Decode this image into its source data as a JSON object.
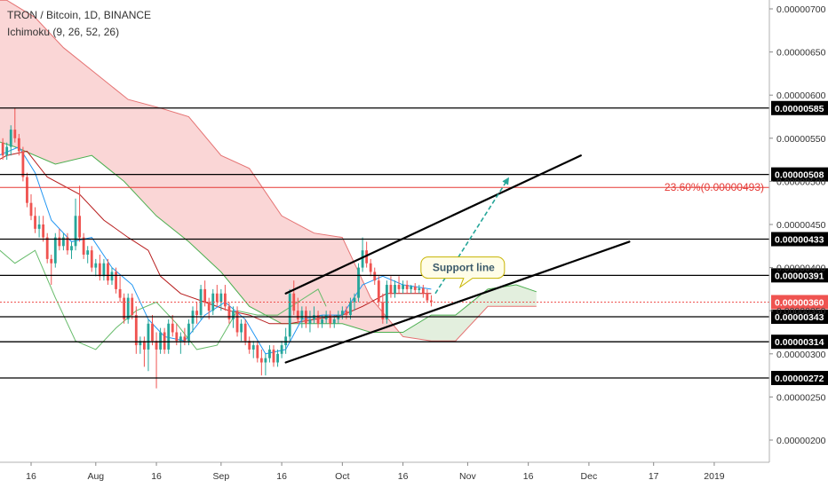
{
  "header": {
    "title": "TRON / Bitcoin, 1D, BINANCE",
    "indicator": "Ichimoku (9, 26, 52, 26)"
  },
  "colors": {
    "up": "#26a69a",
    "down": "#ef5350",
    "cloud_bear": "#f8c8c8",
    "cloud_bull": "#d9ead3",
    "span_a": "#4caf50",
    "span_b": "#e57373",
    "tenkan": "#2196f3",
    "kijun": "#b71c1c",
    "chikou": "#66bb6a",
    "fib": "#e53935",
    "arrow": "#26a69a",
    "trend": "#000000",
    "callout_bg": "#fffde7",
    "callout_border": "#c8b400",
    "current_price": "#ef5350"
  },
  "chart_data": {
    "type": "candlestick",
    "title": "TRON / Bitcoin, 1D, BINANCE",
    "y_range": [
      1.7e-06,
      7.1e-06
    ],
    "y_ticks": [
      "0.00000700",
      "0.00000650",
      "0.00000600",
      "0.00000550",
      "0.00000500",
      "0.00000450",
      "0.00000400",
      "0.00000350",
      "0.00000300",
      "0.00000250",
      "0.00000200"
    ],
    "x_ticks": [
      {
        "label": "16",
        "date": "2018-07-16"
      },
      {
        "label": "Aug",
        "date": "2018-08-01"
      },
      {
        "label": "16",
        "date": "2018-08-16"
      },
      {
        "label": "Sep",
        "date": "2018-09-01"
      },
      {
        "label": "16",
        "date": "2018-09-16"
      },
      {
        "label": "Oct",
        "date": "2018-10-01"
      },
      {
        "label": "16",
        "date": "2018-10-16"
      },
      {
        "label": "Nov",
        "date": "2018-11-01"
      },
      {
        "label": "16",
        "date": "2018-11-16"
      },
      {
        "label": "Dec",
        "date": "2018-12-01"
      },
      {
        "label": "17",
        "date": "2018-12-17"
      },
      {
        "label": "2019",
        "date": "2019-01-01"
      }
    ],
    "horizontal_levels": [
      {
        "price": 5.85e-06,
        "label": "0.00000585"
      },
      {
        "price": 5.08e-06,
        "label": "0.00000508"
      },
      {
        "price": 4.33e-06,
        "label": "0.00000433"
      },
      {
        "price": 3.91e-06,
        "label": "0.00000391"
      },
      {
        "price": 3.43e-06,
        "label": "0.00000343"
      },
      {
        "price": 3.14e-06,
        "label": "0.00000314"
      },
      {
        "price": 2.72e-06,
        "label": "0.00000272"
      }
    ],
    "current_price": {
      "price": 3.6e-06,
      "label": "0.00000360"
    },
    "fib_level": {
      "price": 4.93e-06,
      "label": "23.60%(0.00000493)"
    },
    "trendlines": [
      {
        "start": {
          "date": "2018-09-17",
          "price": 3.7e-06
        },
        "end": {
          "date": "2018-11-29",
          "price": 5.3e-06
        }
      },
      {
        "start": {
          "date": "2018-09-17",
          "price": 2.9e-06
        },
        "end": {
          "date": "2018-12-11",
          "price": 4.3e-06
        }
      }
    ],
    "arrow": {
      "start": {
        "date": "2018-10-24",
        "price": 3.7e-06
      },
      "end": {
        "date": "2018-11-11",
        "price": 5.03e-06
      }
    },
    "callout": {
      "text": "Support line",
      "date": "2018-10-31",
      "price": 4e-06
    },
    "ohlc": [
      [
        "2018-07-02",
        5.5,
        5.55,
        5.2,
        5.3
      ],
      [
        "2018-07-03",
        5.3,
        5.38,
        5.05,
        5.1
      ],
      [
        "2018-07-04",
        5.1,
        5.42,
        5.05,
        5.35
      ],
      [
        "2018-07-05",
        5.35,
        5.45,
        5.0,
        5.05
      ],
      [
        "2018-07-06",
        5.05,
        5.2,
        4.95,
        5.15
      ],
      [
        "2018-07-07",
        5.15,
        5.4,
        5.1,
        5.35
      ],
      [
        "2018-07-08",
        5.35,
        5.5,
        5.3,
        5.45
      ],
      [
        "2018-07-09",
        5.45,
        5.5,
        5.25,
        5.3
      ],
      [
        "2018-07-10",
        5.3,
        5.45,
        5.25,
        5.4
      ],
      [
        "2018-07-11",
        5.4,
        5.65,
        5.3,
        5.6
      ],
      [
        "2018-07-12",
        5.6,
        5.85,
        5.45,
        5.5
      ],
      [
        "2018-07-13",
        5.5,
        5.55,
        5.3,
        5.35
      ],
      [
        "2018-07-14",
        5.35,
        5.4,
        5.0,
        5.05
      ],
      [
        "2018-07-15",
        5.05,
        5.1,
        4.7,
        4.75
      ],
      [
        "2018-07-16",
        4.75,
        4.85,
        4.55,
        4.6
      ],
      [
        "2018-07-17",
        4.6,
        4.7,
        4.4,
        4.45
      ],
      [
        "2018-07-18",
        4.45,
        4.6,
        4.35,
        4.5
      ],
      [
        "2018-07-19",
        4.5,
        4.6,
        4.3,
        4.35
      ],
      [
        "2018-07-20",
        4.35,
        4.4,
        4.05,
        4.1
      ],
      [
        "2018-07-21",
        4.1,
        4.15,
        3.8,
        4.05
      ],
      [
        "2018-07-22",
        4.05,
        4.4,
        4.0,
        4.35
      ],
      [
        "2018-07-23",
        4.35,
        4.45,
        4.2,
        4.25
      ],
      [
        "2018-07-24",
        4.25,
        4.4,
        4.2,
        4.35
      ],
      [
        "2018-07-25",
        4.35,
        4.4,
        4.15,
        4.2
      ],
      [
        "2018-07-26",
        4.2,
        4.3,
        4.1,
        4.25
      ],
      [
        "2018-07-27",
        4.25,
        4.8,
        4.2,
        4.6
      ],
      [
        "2018-07-28",
        4.6,
        4.95,
        4.3,
        4.35
      ],
      [
        "2018-07-29",
        4.35,
        4.4,
        4.1,
        4.15
      ],
      [
        "2018-07-30",
        4.15,
        4.25,
        4.05,
        4.2
      ],
      [
        "2018-07-31",
        4.2,
        4.25,
        3.95,
        4.0
      ],
      [
        "2018-08-01",
        4.0,
        4.1,
        3.9,
        4.05
      ],
      [
        "2018-08-02",
        4.05,
        4.15,
        3.85,
        3.9
      ],
      [
        "2018-08-03",
        3.9,
        4.1,
        3.85,
        4.05
      ],
      [
        "2018-08-04",
        4.05,
        4.1,
        3.8,
        3.85
      ],
      [
        "2018-08-05",
        3.85,
        4.0,
        3.8,
        3.95
      ],
      [
        "2018-08-06",
        3.95,
        4.0,
        3.7,
        3.75
      ],
      [
        "2018-08-07",
        3.75,
        3.9,
        3.6,
        3.65
      ],
      [
        "2018-08-08",
        3.65,
        3.7,
        3.35,
        3.4
      ],
      [
        "2018-08-09",
        3.4,
        3.7,
        3.35,
        3.65
      ],
      [
        "2018-08-10",
        3.65,
        3.7,
        3.4,
        3.45
      ],
      [
        "2018-08-11",
        3.45,
        3.55,
        3.0,
        3.1
      ],
      [
        "2018-08-12",
        3.1,
        3.2,
        3.0,
        3.15
      ],
      [
        "2018-08-13",
        3.15,
        3.2,
        2.85,
        3.05
      ],
      [
        "2018-08-14",
        3.05,
        3.4,
        2.8,
        3.35
      ],
      [
        "2018-08-15",
        3.35,
        3.45,
        3.1,
        3.15
      ],
      [
        "2018-08-16",
        3.15,
        3.25,
        2.6,
        3.05
      ],
      [
        "2018-08-17",
        3.05,
        3.3,
        3.0,
        3.25
      ],
      [
        "2018-08-18",
        3.25,
        3.3,
        3.0,
        3.05
      ],
      [
        "2018-08-19",
        3.05,
        3.4,
        3.0,
        3.35
      ],
      [
        "2018-08-20",
        3.35,
        3.45,
        3.2,
        3.25
      ],
      [
        "2018-08-21",
        3.25,
        3.35,
        3.1,
        3.15
      ],
      [
        "2018-08-22",
        3.15,
        3.25,
        3.0,
        3.2
      ],
      [
        "2018-08-23",
        3.2,
        3.3,
        3.1,
        3.15
      ],
      [
        "2018-08-24",
        3.15,
        3.4,
        3.1,
        3.35
      ],
      [
        "2018-08-25",
        3.35,
        3.55,
        3.25,
        3.5
      ],
      [
        "2018-08-26",
        3.5,
        3.6,
        3.35,
        3.45
      ],
      [
        "2018-08-27",
        3.45,
        3.8,
        3.4,
        3.75
      ],
      [
        "2018-08-28",
        3.75,
        3.85,
        3.55,
        3.6
      ],
      [
        "2018-08-29",
        3.6,
        3.65,
        3.4,
        3.5
      ],
      [
        "2018-08-30",
        3.5,
        3.75,
        3.45,
        3.7
      ],
      [
        "2018-08-31",
        3.7,
        3.8,
        3.55,
        3.6
      ],
      [
        "2018-09-01",
        3.6,
        3.75,
        3.5,
        3.7
      ],
      [
        "2018-09-02",
        3.7,
        3.8,
        3.5,
        3.55
      ],
      [
        "2018-09-03",
        3.55,
        3.6,
        3.35,
        3.4
      ],
      [
        "2018-09-04",
        3.4,
        3.55,
        3.3,
        3.5
      ],
      [
        "2018-09-05",
        3.5,
        3.55,
        3.2,
        3.25
      ],
      [
        "2018-09-06",
        3.25,
        3.4,
        3.15,
        3.35
      ],
      [
        "2018-09-07",
        3.35,
        3.4,
        3.1,
        3.15
      ],
      [
        "2018-09-08",
        3.15,
        3.2,
        3.0,
        3.05
      ],
      [
        "2018-09-09",
        3.05,
        3.15,
        2.95,
        3.1
      ],
      [
        "2018-09-10",
        3.1,
        3.15,
        2.9,
        2.95
      ],
      [
        "2018-09-11",
        2.95,
        3.05,
        2.75,
        2.9
      ],
      [
        "2018-09-12",
        2.9,
        3.0,
        2.75,
        2.95
      ],
      [
        "2018-09-13",
        2.95,
        3.1,
        2.9,
        3.05
      ],
      [
        "2018-09-14",
        3.05,
        3.1,
        2.85,
        2.9
      ],
      [
        "2018-09-15",
        2.9,
        3.05,
        2.85,
        3.0
      ],
      [
        "2018-09-16",
        3.0,
        3.15,
        2.95,
        3.1
      ],
      [
        "2018-09-17",
        3.1,
        3.3,
        3.0,
        3.2
      ],
      [
        "2018-09-18",
        3.2,
        3.75,
        3.15,
        3.7
      ],
      [
        "2018-09-19",
        3.7,
        3.85,
        3.45,
        3.5
      ],
      [
        "2018-09-20",
        3.5,
        3.65,
        3.35,
        3.4
      ],
      [
        "2018-09-21",
        3.4,
        3.55,
        3.3,
        3.5
      ],
      [
        "2018-09-22",
        3.5,
        3.55,
        3.3,
        3.35
      ],
      [
        "2018-09-23",
        3.35,
        3.5,
        3.25,
        3.4
      ],
      [
        "2018-09-24",
        3.4,
        3.55,
        3.35,
        3.45
      ],
      [
        "2018-09-25",
        3.45,
        3.5,
        3.3,
        3.35
      ],
      [
        "2018-09-26",
        3.35,
        3.45,
        3.3,
        3.4
      ],
      [
        "2018-09-27",
        3.4,
        3.5,
        3.35,
        3.45
      ],
      [
        "2018-09-28",
        3.45,
        3.5,
        3.3,
        3.35
      ],
      [
        "2018-09-29",
        3.35,
        3.45,
        3.3,
        3.4
      ],
      [
        "2018-09-30",
        3.4,
        3.5,
        3.35,
        3.45
      ],
      [
        "2018-10-01",
        3.45,
        3.55,
        3.4,
        3.5
      ],
      [
        "2018-10-02",
        3.5,
        3.55,
        3.4,
        3.45
      ],
      [
        "2018-10-03",
        3.45,
        3.65,
        3.4,
        3.6
      ],
      [
        "2018-10-04",
        3.6,
        3.7,
        3.5,
        3.65
      ],
      [
        "2018-10-05",
        3.65,
        4.05,
        3.6,
        4.0
      ],
      [
        "2018-10-06",
        4.0,
        4.35,
        3.95,
        4.2
      ],
      [
        "2018-10-07",
        4.2,
        4.3,
        4.0,
        4.05
      ],
      [
        "2018-10-08",
        4.05,
        4.1,
        3.9,
        3.95
      ],
      [
        "2018-10-09",
        3.95,
        4.0,
        3.8,
        3.85
      ],
      [
        "2018-10-10",
        3.85,
        3.9,
        3.55,
        3.6
      ],
      [
        "2018-10-11",
        3.6,
        3.7,
        3.35,
        3.4
      ],
      [
        "2018-10-12",
        3.4,
        3.85,
        3.35,
        3.8
      ],
      [
        "2018-10-13",
        3.8,
        3.9,
        3.65,
        3.7
      ],
      [
        "2018-10-14",
        3.7,
        3.85,
        3.65,
        3.8
      ],
      [
        "2018-10-15",
        3.8,
        3.9,
        3.7,
        3.75
      ],
      [
        "2018-10-16",
        3.75,
        3.85,
        3.7,
        3.8
      ],
      [
        "2018-10-17",
        3.8,
        3.85,
        3.7,
        3.75
      ],
      [
        "2018-10-18",
        3.75,
        3.8,
        3.7,
        3.78
      ],
      [
        "2018-10-19",
        3.78,
        3.82,
        3.7,
        3.74
      ],
      [
        "2018-10-20",
        3.74,
        3.8,
        3.7,
        3.76
      ],
      [
        "2018-10-21",
        3.76,
        3.8,
        3.65,
        3.7
      ],
      [
        "2018-10-22",
        3.7,
        3.75,
        3.6,
        3.62
      ],
      [
        "2018-10-23",
        3.62,
        3.68,
        3.55,
        3.6
      ]
    ],
    "tenkan_sen": [
      [
        "2018-07-02",
        5.35
      ],
      [
        "2018-07-08",
        5.3
      ],
      [
        "2018-07-13",
        5.4
      ],
      [
        "2018-07-17",
        5.1
      ],
      [
        "2018-07-21",
        4.55
      ],
      [
        "2018-07-26",
        4.3
      ],
      [
        "2018-07-31",
        4.35
      ],
      [
        "2018-08-05",
        4.0
      ],
      [
        "2018-08-10",
        3.8
      ],
      [
        "2018-08-14",
        3.4
      ],
      [
        "2018-08-18",
        3.2
      ],
      [
        "2018-08-23",
        3.15
      ],
      [
        "2018-08-28",
        3.45
      ],
      [
        "2018-09-02",
        3.6
      ],
      [
        "2018-09-07",
        3.4
      ],
      [
        "2018-09-12",
        3.0
      ],
      [
        "2018-09-17",
        3.05
      ],
      [
        "2018-09-21",
        3.4
      ],
      [
        "2018-09-26",
        3.45
      ],
      [
        "2018-10-01",
        3.45
      ],
      [
        "2018-10-06",
        3.8
      ],
      [
        "2018-10-11",
        3.9
      ],
      [
        "2018-10-16",
        3.8
      ],
      [
        "2018-10-23",
        3.75
      ]
    ],
    "kijun_sen": [
      [
        "2018-07-02",
        5.1
      ],
      [
        "2018-07-10",
        5.3
      ],
      [
        "2018-07-15",
        5.35
      ],
      [
        "2018-07-20",
        5.05
      ],
      [
        "2018-07-28",
        4.85
      ],
      [
        "2018-08-03",
        4.55
      ],
      [
        "2018-08-09",
        4.35
      ],
      [
        "2018-08-14",
        4.2
      ],
      [
        "2018-08-17",
        3.9
      ],
      [
        "2018-08-22",
        3.7
      ],
      [
        "2018-08-28",
        3.6
      ],
      [
        "2018-09-03",
        3.5
      ],
      [
        "2018-09-08",
        3.45
      ],
      [
        "2018-09-13",
        3.35
      ],
      [
        "2018-09-18",
        3.35
      ],
      [
        "2018-09-24",
        3.4
      ],
      [
        "2018-10-01",
        3.45
      ],
      [
        "2018-10-06",
        3.55
      ],
      [
        "2018-10-12",
        3.7
      ],
      [
        "2018-10-18",
        3.7
      ],
      [
        "2018-10-23",
        3.7
      ]
    ],
    "chikou_span": [
      [
        "2018-07-02",
        5.05
      ],
      [
        "2018-07-07",
        4.25
      ],
      [
        "2018-07-12",
        4.05
      ],
      [
        "2018-07-17",
        4.2
      ],
      [
        "2018-07-22",
        3.65
      ],
      [
        "2018-07-27",
        3.15
      ],
      [
        "2018-08-01",
        3.05
      ],
      [
        "2018-08-06",
        3.3
      ],
      [
        "2018-08-11",
        3.5
      ],
      [
        "2018-08-16",
        3.6
      ],
      [
        "2018-08-21",
        3.35
      ],
      [
        "2018-08-26",
        3.05
      ],
      [
        "2018-08-31",
        3.1
      ],
      [
        "2018-09-05",
        3.5
      ],
      [
        "2018-09-10",
        3.45
      ],
      [
        "2018-09-15",
        3.45
      ],
      [
        "2018-09-20",
        3.6
      ],
      [
        "2018-09-25",
        3.75
      ],
      [
        "2018-09-27",
        3.55
      ]
    ],
    "senkou_a": [
      [
        "2018-07-02",
        5.55
      ],
      [
        "2018-07-12",
        5.4
      ],
      [
        "2018-07-22",
        5.2
      ],
      [
        "2018-07-31",
        5.3
      ],
      [
        "2018-08-08",
        5.0
      ],
      [
        "2018-08-16",
        4.6
      ],
      [
        "2018-08-24",
        4.3
      ],
      [
        "2018-09-01",
        3.95
      ],
      [
        "2018-09-08",
        3.55
      ],
      [
        "2018-09-16",
        3.35
      ],
      [
        "2018-09-24",
        3.35
      ],
      [
        "2018-10-01",
        3.35
      ],
      [
        "2018-10-08",
        3.25
      ],
      [
        "2018-10-16",
        3.25
      ],
      [
        "2018-10-23",
        3.45
      ],
      [
        "2018-10-29",
        3.45
      ],
      [
        "2018-11-06",
        3.75
      ],
      [
        "2018-11-13",
        3.8
      ],
      [
        "2018-11-18",
        3.72
      ]
    ],
    "senkou_b": [
      [
        "2018-07-02",
        7.1
      ],
      [
        "2018-07-10",
        7.1
      ],
      [
        "2018-07-17",
        6.9
      ],
      [
        "2018-07-24",
        6.55
      ],
      [
        "2018-08-01",
        6.25
      ],
      [
        "2018-08-09",
        5.95
      ],
      [
        "2018-08-17",
        5.85
      ],
      [
        "2018-08-24",
        5.75
      ],
      [
        "2018-09-01",
        5.3
      ],
      [
        "2018-09-08",
        5.15
      ],
      [
        "2018-09-16",
        4.6
      ],
      [
        "2018-09-24",
        4.4
      ],
      [
        "2018-10-01",
        4.35
      ],
      [
        "2018-10-08",
        3.65
      ],
      [
        "2018-10-16",
        3.2
      ],
      [
        "2018-10-23",
        3.15
      ],
      [
        "2018-10-29",
        3.15
      ],
      [
        "2018-11-06",
        3.55
      ],
      [
        "2018-11-18",
        3.55
      ]
    ]
  }
}
